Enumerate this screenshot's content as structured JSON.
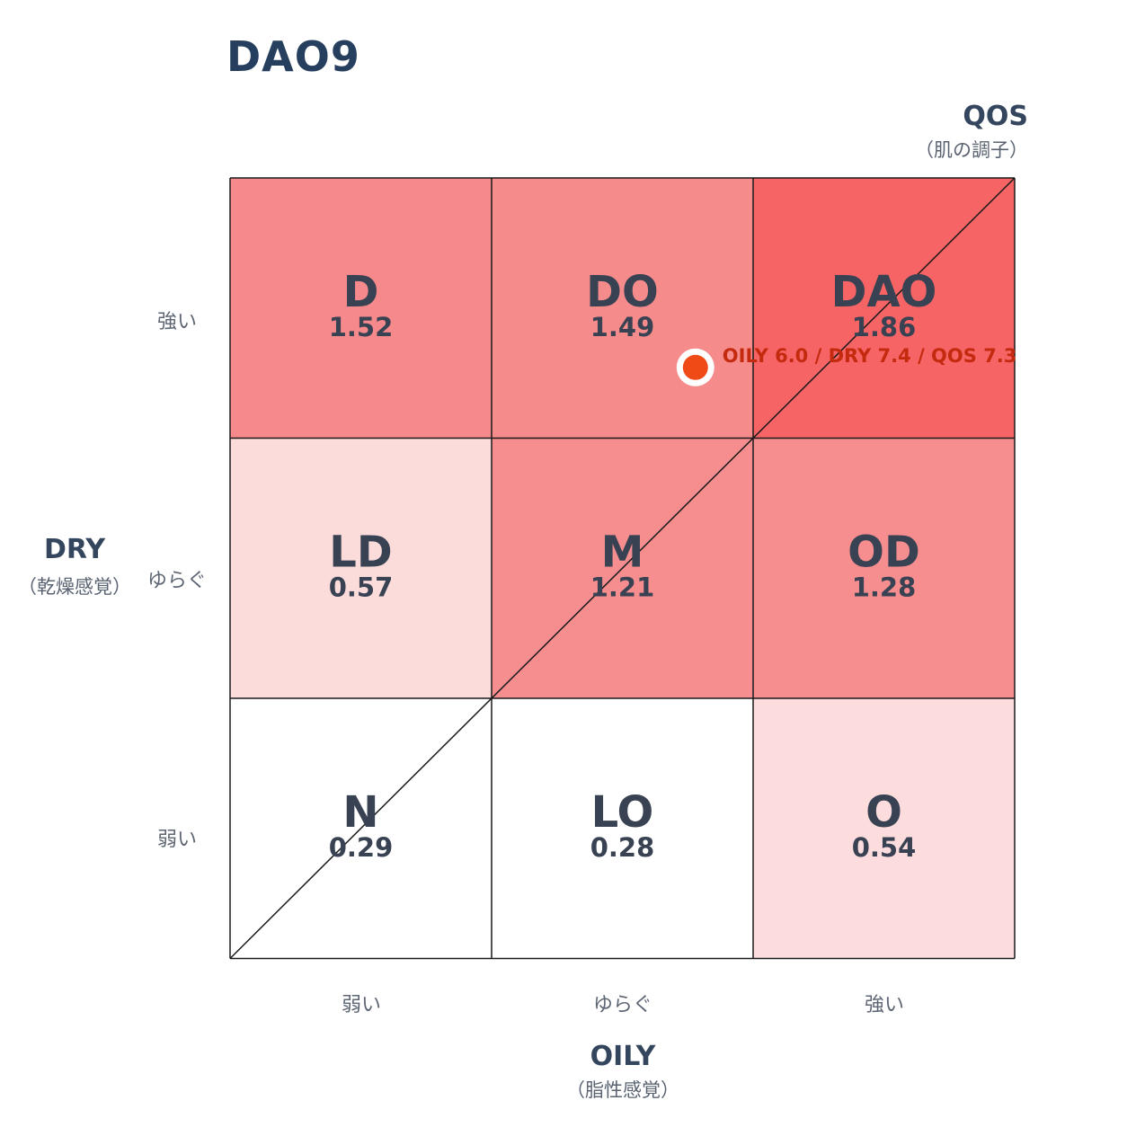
{
  "title": "DAO9",
  "axes": {
    "qos": {
      "label": "QOS",
      "sublabel": "（肌の調子）"
    },
    "dry": {
      "label": "DRY",
      "sublabel": "（乾燥感覚）"
    },
    "oily": {
      "label": "OILY",
      "sublabel": "（脂性感覚）"
    }
  },
  "y_ticks": [
    "強い",
    "ゆらぐ",
    "弱い"
  ],
  "x_ticks": [
    "弱い",
    "ゆらぐ",
    "強い"
  ],
  "colors": {
    "grid_line": "#1a1a1a",
    "cell_label": "#384252",
    "marker": "#f04a16",
    "marker_text": "#c42a0e"
  },
  "chart_data": {
    "type": "heatmap",
    "title": "DAO9",
    "xlabel": "OILY",
    "ylabel": "DRY",
    "rows": [
      "強い",
      "ゆらぐ",
      "弱い"
    ],
    "columns": [
      "弱い",
      "ゆらぐ",
      "強い"
    ],
    "cells": [
      [
        {
          "label": "D",
          "value": "1.52",
          "color": "#f6898b"
        },
        {
          "label": "DO",
          "value": "1.49",
          "color": "#f68b8c"
        },
        {
          "label": "DAO",
          "value": "1.86",
          "color": "#f76465"
        }
      ],
      [
        {
          "label": "LD",
          "value": "0.57",
          "color": "#fcdbdb"
        },
        {
          "label": "M",
          "value": "1.21",
          "color": "#f68e8f"
        },
        {
          "label": "OD",
          "value": "1.28",
          "color": "#f68e8f"
        }
      ],
      [
        {
          "label": "N",
          "value": "0.29",
          "color": "#ffffff"
        },
        {
          "label": "LO",
          "value": "0.28",
          "color": "#ffffff"
        },
        {
          "label": "O",
          "value": "0.54",
          "color": "#fcdcdc"
        }
      ]
    ],
    "marker": {
      "oily": 6.0,
      "dry": 7.4,
      "qos": 7.3,
      "label": "OILY 6.0 / DRY 7.4 / QOS 7.3"
    }
  }
}
